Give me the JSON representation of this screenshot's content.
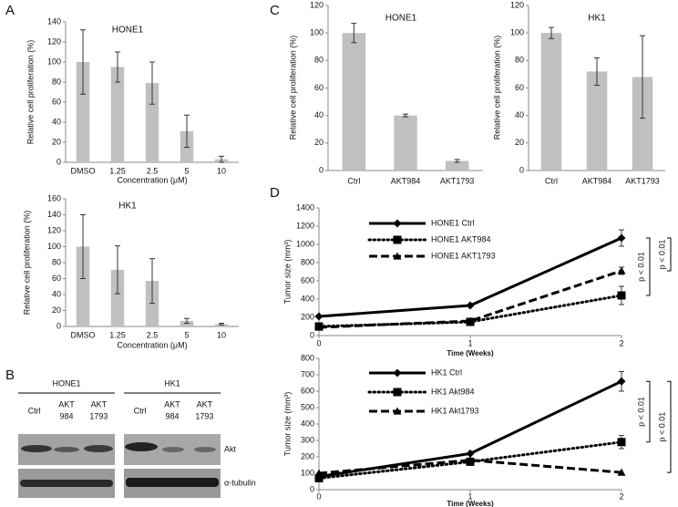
{
  "panel_labels": [
    "A",
    "B",
    "C",
    "D"
  ],
  "blot": {
    "groups": [
      {
        "label": "HONE1",
        "lanes": [
          [
            "Ctrl"
          ],
          [
            "AKT",
            "984"
          ],
          [
            "AKT",
            "1793"
          ]
        ]
      },
      {
        "label": "HK1",
        "lanes": [
          [
            "Ctrl"
          ],
          [
            "AKT",
            "984"
          ],
          [
            "AKT",
            "1793"
          ]
        ]
      }
    ],
    "rows": [
      "Akt",
      "α-tubulin"
    ]
  },
  "chart_data": [
    {
      "type": "bar",
      "title": "HONE1",
      "categories": [
        "DMSO",
        "1.25",
        "2.5",
        "5",
        "10"
      ],
      "values": [
        100,
        95,
        79,
        31,
        3
      ],
      "errors": [
        32,
        15,
        21,
        16,
        3
      ],
      "color": "#c0c0c0",
      "ylim": [
        0,
        140
      ],
      "yticks": [
        0,
        20,
        40,
        60,
        80,
        100,
        120,
        140
      ],
      "y_label": "Relative cell proliferation (%)",
      "x_label": "Concentration (μM)"
    },
    {
      "type": "bar",
      "title": "HK1",
      "categories": [
        "DMSO",
        "1.25",
        "2.5",
        "5",
        "10"
      ],
      "values": [
        100,
        71,
        57,
        7,
        3
      ],
      "errors": [
        40,
        30,
        28,
        3,
        1
      ],
      "color": "#c0c0c0",
      "ylim": [
        0,
        160
      ],
      "yticks": [
        0,
        20,
        40,
        60,
        80,
        100,
        120,
        140,
        160
      ],
      "y_label": "Relative cell proliferation (%)",
      "x_label": "Concentration (μM)"
    },
    {
      "type": "bar",
      "title": "HONE1",
      "categories": [
        "Ctrl",
        "AKT984",
        "AKT1793"
      ],
      "values": [
        100,
        40,
        7
      ],
      "errors": [
        7,
        1,
        1
      ],
      "color": "#c0c0c0",
      "ylim": [
        0,
        120
      ],
      "yticks": [
        0,
        20,
        40,
        60,
        80,
        100,
        120
      ],
      "y_label": "Relative cell proliferation (%)"
    },
    {
      "type": "bar",
      "title": "HK1",
      "categories": [
        "Ctrl",
        "AKT984",
        "AKT1793"
      ],
      "values": [
        100,
        72,
        68
      ],
      "errors": [
        4,
        10,
        30
      ],
      "color": "#c0c0c0",
      "ylim": [
        0,
        120
      ],
      "yticks": [
        0,
        20,
        40,
        60,
        80,
        100,
        120
      ],
      "y_label": "Relative cell proliferation (%)"
    },
    {
      "type": "line",
      "x": [
        0,
        1,
        2
      ],
      "xlim": [
        0,
        2
      ],
      "xticks": [
        0,
        1,
        2
      ],
      "ylim": [
        0,
        1400
      ],
      "yticks": [
        0,
        200,
        400,
        600,
        800,
        1000,
        1200,
        1400
      ],
      "x_label": "Time (Weeks)",
      "y_label": "Tumor size (mm³)",
      "series": [
        {
          "name": "HONE1 Ctrl",
          "color": "#000000",
          "line_style": "solid",
          "marker": "diamond",
          "values": [
            210,
            330,
            1070
          ],
          "errors": [
            null,
            null,
            90
          ]
        },
        {
          "name": "HONE1 AKT984",
          "color": "#000000",
          "line_style": "dotted",
          "marker": "square",
          "values": [
            100,
            150,
            440
          ],
          "errors": [
            null,
            null,
            100
          ]
        },
        {
          "name": "HONE1 AKT1793",
          "color": "#000000",
          "line_style": "dashed",
          "marker": "triangle",
          "values": [
            90,
            160,
            710
          ],
          "errors": [
            null,
            null,
            40
          ]
        }
      ],
      "annotations": [
        "p < 0.01",
        "p < 0.01"
      ]
    },
    {
      "type": "line",
      "x": [
        0,
        1,
        2
      ],
      "xlim": [
        0,
        2
      ],
      "xticks": [
        0,
        1,
        2
      ],
      "ylim": [
        0,
        800
      ],
      "yticks": [
        0,
        100,
        200,
        300,
        400,
        500,
        600,
        700,
        800
      ],
      "x_label": "Time (Weeks)",
      "y_label": "Tumor size (mm³)",
      "series": [
        {
          "name": "HK1 Ctrl",
          "color": "#000000",
          "line_style": "solid",
          "marker": "diamond",
          "values": [
            80,
            220,
            660
          ],
          "errors": [
            null,
            null,
            60
          ]
        },
        {
          "name": "HK1 Akt984",
          "color": "#000000",
          "line_style": "dotted",
          "marker": "square",
          "values": [
            70,
            170,
            290
          ],
          "errors": [
            null,
            null,
            40
          ]
        },
        {
          "name": "HK1 Akt1793",
          "color": "#000000",
          "line_style": "dashed",
          "marker": "triangle",
          "values": [
            100,
            180,
            105
          ],
          "errors": [
            null,
            null,
            null
          ]
        }
      ],
      "annotations": [
        "p < 0.01",
        "p < 0.01"
      ]
    }
  ]
}
